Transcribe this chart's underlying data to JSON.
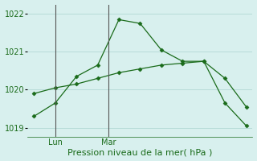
{
  "line1_x": [
    0,
    1,
    2,
    3,
    4,
    5,
    6,
    7,
    8,
    9,
    10
  ],
  "line1_y": [
    1019.3,
    1019.65,
    1020.35,
    1020.65,
    1021.85,
    1021.75,
    1021.05,
    1020.75,
    1020.75,
    1019.65,
    1019.05
  ],
  "line2_x": [
    0,
    1,
    2,
    3,
    4,
    5,
    6,
    7,
    8,
    9,
    10
  ],
  "line2_y": [
    1019.9,
    1020.05,
    1020.15,
    1020.3,
    1020.45,
    1020.55,
    1020.65,
    1020.7,
    1020.75,
    1020.3,
    1019.55
  ],
  "line_color": "#1a6b1a",
  "bg_color": "#d8f0ee",
  "grid_color": "#b8dcd8",
  "yticks": [
    1019,
    1020,
    1021,
    1022
  ],
  "ylim": [
    1018.75,
    1022.25
  ],
  "xlim": [
    -0.3,
    10.3
  ],
  "xlabel": "Pression niveau de la mer( hPa )",
  "xlabel_fontsize": 8,
  "tick_fontsize": 7,
  "vline_x": [
    1.0,
    3.5
  ],
  "vline_labels": [
    "Lun",
    "Mar"
  ],
  "vline_color": "#555555",
  "marker": "D",
  "markersize": 2.5,
  "linewidth": 0.9
}
